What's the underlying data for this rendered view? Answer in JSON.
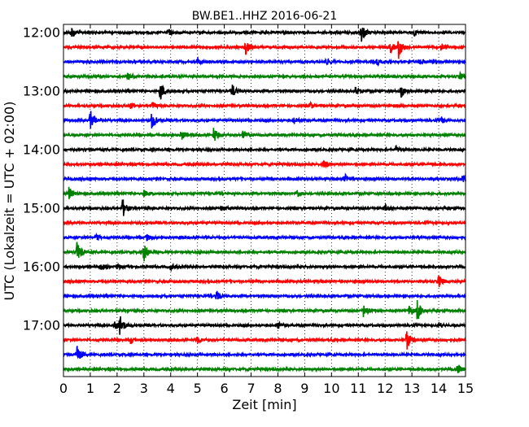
{
  "chart_data": {
    "type": "line",
    "title": "BW.BE1..HHZ 2016-06-21",
    "xlabel": "Zeit  [min]",
    "ylabel": "UTC (Lokalzeit = UTC + 02:00)",
    "xlim": [
      0,
      15
    ],
    "x_ticks": [
      0,
      1,
      2,
      3,
      4,
      5,
      6,
      7,
      8,
      9,
      10,
      11,
      12,
      13,
      14,
      15
    ],
    "y_tick_labels": [
      "12:00",
      "13:00",
      "14:00",
      "15:00",
      "16:00",
      "17:00"
    ],
    "grid": "vertical dotted lines at each minute",
    "trace_colors": [
      "#000000",
      "#ff0000",
      "#0000ff",
      "#008000"
    ],
    "traces": [
      {
        "start": "12:00",
        "color": "#000000",
        "events": [
          {
            "t": 0.3,
            "a": 0.5
          },
          {
            "t": 3.9,
            "a": 0.3
          },
          {
            "t": 11.1,
            "a": 1.0
          },
          {
            "t": 13.1,
            "a": 0.3
          }
        ]
      },
      {
        "start": "12:15",
        "color": "#ff0000",
        "events": [
          {
            "t": 6.8,
            "a": 0.7
          },
          {
            "t": 12.2,
            "a": 0.5
          },
          {
            "t": 12.5,
            "a": 1.0
          },
          {
            "t": 14.1,
            "a": 0.4
          }
        ]
      },
      {
        "start": "12:30",
        "color": "#0000ff",
        "events": [
          {
            "t": 5.0,
            "a": 0.3
          },
          {
            "t": 9.8,
            "a": 0.3
          },
          {
            "t": 11.7,
            "a": 0.3
          },
          {
            "t": 13.3,
            "a": 0.3
          }
        ]
      },
      {
        "start": "12:45",
        "color": "#008000",
        "events": [
          {
            "t": 2.4,
            "a": 0.3
          },
          {
            "t": 14.8,
            "a": 0.3
          }
        ]
      },
      {
        "start": "13:00",
        "color": "#000000",
        "events": [
          {
            "t": 3.6,
            "a": 1.0
          },
          {
            "t": 6.3,
            "a": 0.6
          },
          {
            "t": 10.9,
            "a": 0.4
          },
          {
            "t": 12.6,
            "a": 0.6
          }
        ]
      },
      {
        "start": "13:15",
        "color": "#ff0000",
        "events": [
          {
            "t": 2.5,
            "a": 0.3
          },
          {
            "t": 3.3,
            "a": 0.4
          },
          {
            "t": 9.2,
            "a": 0.3
          }
        ]
      },
      {
        "start": "13:30",
        "color": "#0000ff",
        "events": [
          {
            "t": 1.0,
            "a": 1.0
          },
          {
            "t": 3.3,
            "a": 1.0
          },
          {
            "t": 8.6,
            "a": 0.3
          },
          {
            "t": 14.1,
            "a": 0.3
          }
        ]
      },
      {
        "start": "13:45",
        "color": "#008000",
        "events": [
          {
            "t": 4.4,
            "a": 0.5
          },
          {
            "t": 5.6,
            "a": 0.8
          },
          {
            "t": 6.7,
            "a": 0.5
          }
        ]
      },
      {
        "start": "14:00",
        "color": "#000000",
        "events": [
          {
            "t": 12.4,
            "a": 0.3
          }
        ]
      },
      {
        "start": "14:15",
        "color": "#ff0000",
        "events": [
          {
            "t": 9.7,
            "a": 0.4
          }
        ]
      },
      {
        "start": "14:30",
        "color": "#0000ff",
        "events": [
          {
            "t": 10.5,
            "a": 0.4
          },
          {
            "t": 14.9,
            "a": 0.5
          }
        ]
      },
      {
        "start": "14:45",
        "color": "#008000",
        "events": [
          {
            "t": 0.2,
            "a": 0.6
          },
          {
            "t": 3.0,
            "a": 0.3
          },
          {
            "t": 8.7,
            "a": 0.4
          }
        ]
      },
      {
        "start": "15:00",
        "color": "#000000",
        "events": [
          {
            "t": 2.2,
            "a": 0.9
          },
          {
            "t": 5.9,
            "a": 0.3
          },
          {
            "t": 12.0,
            "a": 0.3
          }
        ]
      },
      {
        "start": "15:15",
        "color": "#ff0000",
        "events": []
      },
      {
        "start": "15:30",
        "color": "#0000ff",
        "events": [
          {
            "t": 1.2,
            "a": 0.3
          },
          {
            "t": 3.1,
            "a": 0.3
          }
        ]
      },
      {
        "start": "15:45",
        "color": "#008000",
        "events": [
          {
            "t": 0.5,
            "a": 1.0
          },
          {
            "t": 3.0,
            "a": 0.9
          }
        ]
      },
      {
        "start": "16:00",
        "color": "#000000",
        "events": [
          {
            "t": 1.4,
            "a": 0.4
          },
          {
            "t": 2.0,
            "a": 0.3
          },
          {
            "t": 4.0,
            "a": 0.3
          }
        ]
      },
      {
        "start": "16:15",
        "color": "#ff0000",
        "events": [
          {
            "t": 14.0,
            "a": 0.6
          }
        ]
      },
      {
        "start": "16:30",
        "color": "#0000ff",
        "events": [
          {
            "t": 5.7,
            "a": 0.5
          }
        ]
      },
      {
        "start": "16:45",
        "color": "#008000",
        "events": [
          {
            "t": 11.2,
            "a": 0.7
          },
          {
            "t": 12.9,
            "a": 0.5
          },
          {
            "t": 13.2,
            "a": 1.0
          }
        ]
      },
      {
        "start": "17:00",
        "color": "#000000",
        "events": [
          {
            "t": 1.9,
            "a": 0.5
          },
          {
            "t": 2.1,
            "a": 1.0
          },
          {
            "t": 8.0,
            "a": 0.3
          },
          {
            "t": 14.0,
            "a": 0.3
          }
        ]
      },
      {
        "start": "17:15",
        "color": "#ff0000",
        "events": [
          {
            "t": 2.5,
            "a": 0.3
          },
          {
            "t": 5.0,
            "a": 0.3
          },
          {
            "t": 12.8,
            "a": 1.0
          }
        ]
      },
      {
        "start": "17:30",
        "color": "#0000ff",
        "events": [
          {
            "t": 0.5,
            "a": 0.8
          }
        ]
      },
      {
        "start": "17:45",
        "color": "#008000",
        "events": [
          {
            "t": 14.7,
            "a": 0.4
          }
        ]
      }
    ]
  }
}
